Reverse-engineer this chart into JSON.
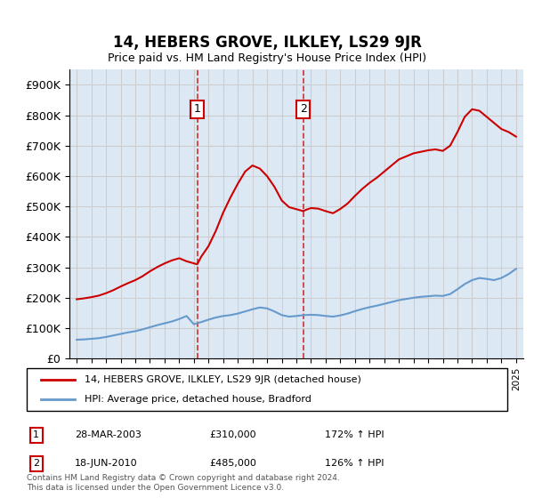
{
  "title": "14, HEBERS GROVE, ILKLEY, LS29 9JR",
  "subtitle": "Price paid vs. HM Land Registry's House Price Index (HPI)",
  "ylim": [
    0,
    950000
  ],
  "yticks": [
    0,
    100000,
    200000,
    300000,
    400000,
    500000,
    600000,
    700000,
    800000,
    900000
  ],
  "ytick_labels": [
    "£0",
    "£100K",
    "£200K",
    "£300K",
    "£400K",
    "£500K",
    "£600K",
    "£700K",
    "£800K",
    "£900K"
  ],
  "xlim_start": 1994.5,
  "xlim_end": 2025.5,
  "sale1_date": "28-MAR-2003",
  "sale1_price": 310000,
  "sale1_hpi_pct": "172%",
  "sale1_year": 2003.23,
  "sale2_date": "18-JUN-2010",
  "sale2_price": 485000,
  "sale2_hpi_pct": "126%",
  "sale2_year": 2010.46,
  "property_color": "#cc0000",
  "hpi_color": "#6699cc",
  "grid_color": "#cccccc",
  "background_color": "#dce9f5",
  "legend_label_property": "14, HEBERS GROVE, ILKLEY, LS29 9JR (detached house)",
  "legend_label_hpi": "HPI: Average price, detached house, Bradford",
  "footer": "Contains HM Land Registry data © Crown copyright and database right 2024.\nThis data is licensed under the Open Government Licence v3.0.",
  "hpi_x": [
    1995,
    1995.5,
    1996,
    1996.5,
    1997,
    1997.5,
    1998,
    1998.5,
    1999,
    1999.5,
    2000,
    2000.5,
    2001,
    2001.5,
    2002,
    2002.5,
    2003,
    2003.5,
    2004,
    2004.5,
    2005,
    2005.5,
    2006,
    2006.5,
    2007,
    2007.5,
    2008,
    2008.5,
    2009,
    2009.5,
    2010,
    2010.5,
    2011,
    2011.5,
    2012,
    2012.5,
    2013,
    2013.5,
    2014,
    2014.5,
    2015,
    2015.5,
    2016,
    2016.5,
    2017,
    2017.5,
    2018,
    2018.5,
    2019,
    2019.5,
    2020,
    2020.5,
    2021,
    2021.5,
    2022,
    2022.5,
    2023,
    2023.5,
    2024,
    2024.5,
    2025
  ],
  "hpi_y": [
    62000,
    63000,
    65000,
    67000,
    71000,
    76000,
    81000,
    86000,
    90000,
    96000,
    103000,
    110000,
    116000,
    122000,
    130000,
    140000,
    113000,
    120000,
    128000,
    135000,
    140000,
    143000,
    148000,
    155000,
    162000,
    168000,
    165000,
    155000,
    143000,
    138000,
    140000,
    143000,
    144000,
    143000,
    140000,
    138000,
    142000,
    148000,
    156000,
    163000,
    169000,
    174000,
    180000,
    186000,
    192000,
    196000,
    200000,
    203000,
    205000,
    207000,
    206000,
    212000,
    228000,
    245000,
    258000,
    265000,
    262000,
    258000,
    265000,
    278000,
    295000
  ],
  "prop_x": [
    1995,
    1995.5,
    1996,
    1996.5,
    1997,
    1997.5,
    1998,
    1998.5,
    1999,
    1999.5,
    2000,
    2000.5,
    2001,
    2001.5,
    2002,
    2002.5,
    2003.23,
    2003.5,
    2004,
    2004.5,
    2005,
    2005.5,
    2006,
    2006.5,
    2007,
    2007.5,
    2008,
    2008.5,
    2009,
    2009.5,
    2010.46,
    2010.7,
    2011,
    2011.5,
    2012,
    2012.5,
    2013,
    2013.5,
    2014,
    2014.5,
    2015,
    2015.5,
    2016,
    2016.5,
    2017,
    2017.5,
    2018,
    2018.5,
    2019,
    2019.5,
    2020,
    2020.5,
    2021,
    2021.5,
    2022,
    2022.5,
    2023,
    2023.5,
    2024,
    2024.5,
    2025
  ],
  "prop_y": [
    195000,
    198000,
    202000,
    207000,
    215000,
    225000,
    237000,
    248000,
    258000,
    271000,
    287000,
    301000,
    313000,
    323000,
    330000,
    320000,
    310000,
    335000,
    370000,
    420000,
    480000,
    530000,
    575000,
    615000,
    635000,
    625000,
    600000,
    565000,
    520000,
    498000,
    485000,
    490000,
    495000,
    493000,
    485000,
    478000,
    492000,
    510000,
    535000,
    558000,
    578000,
    595000,
    615000,
    635000,
    655000,
    665000,
    675000,
    680000,
    685000,
    688000,
    683000,
    700000,
    745000,
    795000,
    820000,
    815000,
    795000,
    775000,
    755000,
    745000,
    730000
  ]
}
